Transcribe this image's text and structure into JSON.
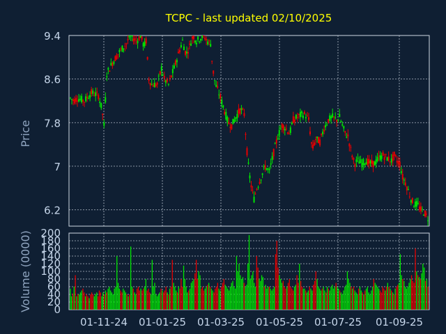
{
  "chart_data": {
    "type": "candlestick",
    "title": "TCPC - last updated 02/10/2025",
    "price_panel": {
      "ylabel": "Price",
      "y_ticks": [
        "9.4",
        "8.6",
        "7.8",
        "7",
        "6.2"
      ],
      "ylim": [
        5.9,
        9.4
      ],
      "colors": {
        "up": "#00e600",
        "down": "#e60000"
      },
      "grid": true
    },
    "volume_panel": {
      "ylabel": "Volume (0000)",
      "y_ticks": [
        "200",
        "180",
        "160",
        "140",
        "120",
        "100",
        "80",
        "60",
        "40",
        "20",
        "0"
      ],
      "ylim": [
        0,
        200
      ],
      "grid": true
    },
    "x_ticks": [
      "01-11-24",
      "01-01-25",
      "01-03-25",
      "01-05-25",
      "01-07-25",
      "01-09-25"
    ],
    "close_path": [
      [
        0,
        8.25
      ],
      [
        5,
        8.2
      ],
      [
        10,
        8.25
      ],
      [
        20,
        8.2
      ],
      [
        30,
        8.35
      ],
      [
        40,
        8.3
      ],
      [
        45,
        8.05
      ],
      [
        48,
        7.75
      ],
      [
        52,
        8.7
      ],
      [
        60,
        8.9
      ],
      [
        70,
        9.1
      ],
      [
        80,
        9.25
      ],
      [
        85,
        9.4
      ],
      [
        95,
        9.3
      ],
      [
        100,
        9.4
      ],
      [
        105,
        9.2
      ],
      [
        108,
        9.3
      ],
      [
        112,
        8.6
      ],
      [
        116,
        8.5
      ],
      [
        124,
        8.5
      ],
      [
        130,
        8.8
      ],
      [
        134,
        8.6
      ],
      [
        140,
        8.5
      ],
      [
        148,
        8.8
      ],
      [
        155,
        9.1
      ],
      [
        160,
        9.3
      ],
      [
        165,
        9.05
      ],
      [
        170,
        9.2
      ],
      [
        175,
        9.4
      ],
      [
        180,
        9.3
      ],
      [
        185,
        9.35
      ],
      [
        190,
        9.4
      ],
      [
        195,
        9.3
      ],
      [
        200,
        9.25
      ],
      [
        203,
        8.8
      ],
      [
        207,
        8.5
      ],
      [
        213,
        8.3
      ],
      [
        218,
        8.1
      ],
      [
        225,
        7.8
      ],
      [
        230,
        7.75
      ],
      [
        238,
        7.95
      ],
      [
        243,
        8.05
      ],
      [
        248,
        7.95
      ],
      [
        253,
        7.1
      ],
      [
        257,
        6.7
      ],
      [
        262,
        6.4
      ],
      [
        266,
        6.6
      ],
      [
        272,
        6.8
      ],
      [
        278,
        7.0
      ],
      [
        284,
        6.9
      ],
      [
        290,
        7.25
      ],
      [
        296,
        7.55
      ],
      [
        302,
        7.75
      ],
      [
        307,
        7.7
      ],
      [
        313,
        7.6
      ],
      [
        318,
        7.85
      ],
      [
        324,
        7.9
      ],
      [
        330,
        7.95
      ],
      [
        335,
        7.95
      ],
      [
        340,
        7.85
      ],
      [
        345,
        7.3
      ],
      [
        350,
        7.5
      ],
      [
        356,
        7.45
      ],
      [
        362,
        7.7
      ],
      [
        368,
        7.85
      ],
      [
        374,
        7.9
      ],
      [
        380,
        7.85
      ],
      [
        384,
        7.9
      ],
      [
        388,
        7.75
      ],
      [
        392,
        7.6
      ],
      [
        396,
        7.55
      ],
      [
        400,
        7.3
      ],
      [
        405,
        7.05
      ],
      [
        410,
        7.1
      ],
      [
        416,
        7.05
      ],
      [
        422,
        7.1
      ],
      [
        428,
        7.05
      ],
      [
        434,
        7.05
      ],
      [
        440,
        7.15
      ],
      [
        446,
        7.2
      ],
      [
        452,
        7.15
      ],
      [
        458,
        7.1
      ],
      [
        462,
        7.2
      ],
      [
        466,
        7.1
      ],
      [
        470,
        7.05
      ],
      [
        474,
        6.8
      ],
      [
        478,
        6.7
      ],
      [
        482,
        6.55
      ],
      [
        486,
        6.4
      ],
      [
        490,
        6.3
      ],
      [
        495,
        6.3
      ],
      [
        500,
        6.2
      ],
      [
        505,
        6.15
      ],
      [
        510,
        6.05
      ]
    ],
    "volume": [
      55,
      35,
      42,
      60,
      90,
      35,
      40,
      40,
      45,
      50,
      55,
      45,
      35,
      40,
      35,
      30,
      40,
      45,
      40,
      35,
      40,
      45,
      35,
      50,
      45,
      35,
      45,
      40,
      50,
      45,
      55,
      60,
      50,
      45,
      40,
      55,
      60,
      140,
      70,
      55,
      50,
      45,
      55,
      50,
      45,
      40,
      35,
      40,
      165,
      60,
      55,
      45,
      40,
      55,
      60,
      50,
      55,
      50,
      55,
      60,
      80,
      50,
      55,
      45,
      40,
      130,
      60,
      70,
      40,
      35,
      40,
      45,
      55,
      50,
      45,
      50,
      60,
      45,
      40,
      55,
      60,
      130,
      70,
      60,
      50,
      45,
      60,
      55,
      80,
      60,
      115,
      80,
      60,
      45,
      50,
      55,
      70,
      75,
      80,
      95,
      130,
      80,
      100,
      90,
      55,
      60,
      50,
      55,
      60,
      65,
      70,
      60,
      55,
      50,
      45,
      55,
      60,
      70,
      55,
      50,
      60,
      70,
      80,
      65,
      60,
      55,
      50,
      60,
      70,
      75,
      60,
      55,
      140,
      100,
      120,
      90,
      80,
      85,
      70,
      60,
      65,
      120,
      195,
      80,
      90,
      100,
      70,
      60,
      140,
      110,
      80,
      75,
      90,
      85,
      60,
      65,
      55,
      60,
      60,
      55,
      50,
      55,
      60,
      145,
      180,
      110,
      90,
      80,
      70,
      75,
      60,
      55,
      60,
      70,
      80,
      60,
      55,
      50,
      60,
      65,
      90,
      70,
      120,
      75,
      60,
      55,
      55,
      50,
      45,
      50,
      60,
      55,
      50,
      65,
      75,
      100,
      80,
      60,
      55,
      50,
      55,
      60,
      50,
      45,
      60,
      55,
      50,
      60,
      65,
      55,
      60,
      70,
      60,
      55,
      50,
      45,
      40,
      50,
      60,
      65,
      100,
      80,
      70,
      60,
      55,
      60,
      50,
      45,
      40,
      55,
      60,
      50,
      45,
      40,
      50,
      55,
      60,
      45,
      40,
      50,
      60,
      80,
      70,
      65,
      60,
      55,
      50,
      45,
      60,
      55,
      50,
      60,
      70,
      60,
      55,
      50,
      45,
      40,
      55,
      60,
      65,
      70,
      145,
      90,
      80,
      75,
      60,
      55,
      60,
      70,
      80,
      90,
      75,
      70,
      160,
      100,
      90,
      85,
      80,
      95,
      120,
      110,
      75,
      80,
      60
    ]
  }
}
